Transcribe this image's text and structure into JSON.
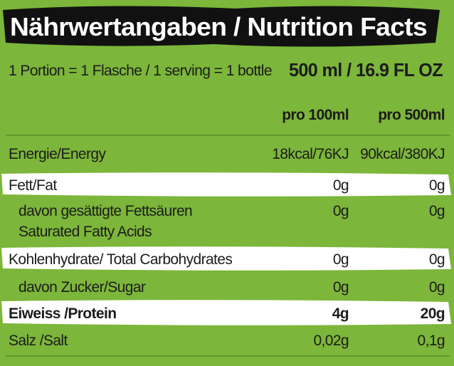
{
  "title": "Nährwertangaben / Nutrition Facts",
  "serving": {
    "label": "1 Portion = 1 Flasche / 1 serving = 1 bottle",
    "size": "500 ml / 16.9 FL OZ"
  },
  "table": {
    "columns": [
      "pro 100ml",
      "pro 500ml"
    ],
    "rows": [
      {
        "label": "Energie/Energy",
        "values": [
          "18kcal/76KJ",
          "90kcal/380KJ"
        ]
      },
      {
        "label": "Fett/Fat",
        "values": [
          "0g",
          "0g"
        ]
      },
      {
        "label": [
          "davon gesättigte Fettsäuren",
          "Saturated Fatty Acids"
        ],
        "values": [
          "0g",
          "0g"
        ]
      },
      {
        "label": "Kohlenhydrate/ Total Carbohydrates",
        "values": [
          "0g",
          "0g"
        ]
      },
      {
        "label": "davon Zucker/Sugar",
        "values": [
          "0g",
          "0g"
        ]
      },
      {
        "label": "Eiweiss /Protein",
        "values": [
          "4g",
          "20g"
        ]
      },
      {
        "label": "Salz /Salt",
        "values": [
          "0,02g",
          "0,1g"
        ]
      }
    ]
  }
}
